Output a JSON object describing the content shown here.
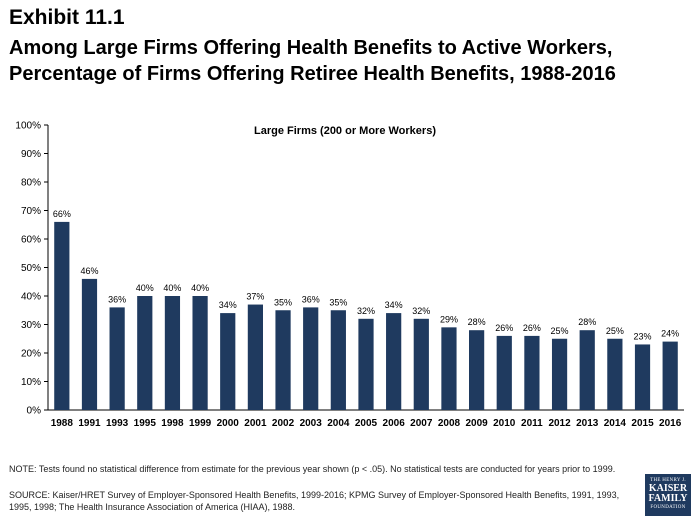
{
  "exhibit_label": "Exhibit 11.1",
  "title": "Among Large Firms Offering Health Benefits to Active Workers, Percentage of Firms Offering Retiree Health Benefits, 1988-2016",
  "chart_data": {
    "type": "bar",
    "title": "Large Firms (200 or More Workers)",
    "xlabel": "",
    "ylabel": "",
    "categories": [
      "1988",
      "1991",
      "1993",
      "1995",
      "1998",
      "1999",
      "2000",
      "2001",
      "2002",
      "2003",
      "2004",
      "2005",
      "2006",
      "2007",
      "2008",
      "2009",
      "2010",
      "2011",
      "2012",
      "2013",
      "2014",
      "2015",
      "2016"
    ],
    "values": [
      66,
      46,
      36,
      40,
      40,
      40,
      34,
      37,
      35,
      36,
      35,
      32,
      34,
      32,
      29,
      28,
      26,
      26,
      25,
      28,
      25,
      23,
      24
    ],
    "data_labels": [
      "66%",
      "46%",
      "36%",
      "40%",
      "40%",
      "40%",
      "34%",
      "37%",
      "35%",
      "36%",
      "35%",
      "32%",
      "34%",
      "32%",
      "29%",
      "28%",
      "26%",
      "26%",
      "25%",
      "28%",
      "25%",
      "23%",
      "24%"
    ],
    "ylim": [
      0,
      100
    ],
    "y_ticks": [
      "0%",
      "10%",
      "20%",
      "30%",
      "40%",
      "50%",
      "60%",
      "70%",
      "80%",
      "90%",
      "100%"
    ],
    "grid": false,
    "bar_color": "#1f3a5f"
  },
  "note": "NOTE: Tests found no statistical difference from estimate for the previous year shown (p < .05). No statistical tests are conducted for years prior to 1999.",
  "source": "SOURCE: Kaiser/HRET Survey of Employer-Sponsored Health Benefits, 1999-2016; KPMG Survey of Employer-Sponsored Health Benefits, 1991, 1993, 1995, 1998; The Health Insurance Association of America (HIAA), 1988.",
  "logo": {
    "line1": "THE HENRY J.",
    "line2": "KAISER",
    "line3": "FAMILY",
    "line4": "FOUNDATION"
  }
}
